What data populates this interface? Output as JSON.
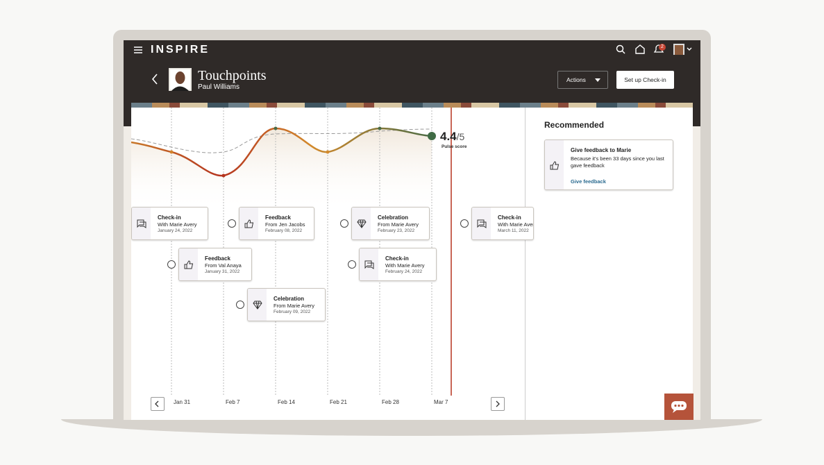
{
  "header": {
    "logo": "INSPIRE",
    "notification_count": "2"
  },
  "page": {
    "title": "Touchpoints",
    "subtitle": "Paul Williams",
    "actions_button": "Actions",
    "setup_button": "Set up Check-in"
  },
  "pulse": {
    "score": "4.4",
    "out_of": "/5",
    "label": "Pulse score"
  },
  "timeline": {
    "cards": [
      {
        "type": "Check-in",
        "from": "With Marie Avery",
        "date": "January 24, 2022"
      },
      {
        "type": "Feedback",
        "from": "From Jen Jacobs",
        "date": "February 08, 2022"
      },
      {
        "type": "Celebration",
        "from": "From Marie Avery",
        "date": "February 23, 2022"
      },
      {
        "type": "Check-in",
        "from": "With Marie Avery",
        "date": "March 11, 2022"
      },
      {
        "type": "Feedback",
        "from": "From Val Anaya",
        "date": "January 31, 2022"
      },
      {
        "type": "Check-in",
        "from": "With Marie Avery",
        "date": "February 24, 2022"
      },
      {
        "type": "Celebration",
        "from": "From Marie Avery",
        "date": "February 09, 2022"
      }
    ],
    "dates": [
      "Jan 31",
      "Feb 7",
      "Feb 14",
      "Feb 21",
      "Feb 28",
      "Mar 7"
    ]
  },
  "recommended": {
    "title": "Recommended",
    "card": {
      "title": "Give feedback to Marie",
      "text": "Because it's been 33 days since you last gave feedback",
      "link": "Give feedback"
    }
  }
}
